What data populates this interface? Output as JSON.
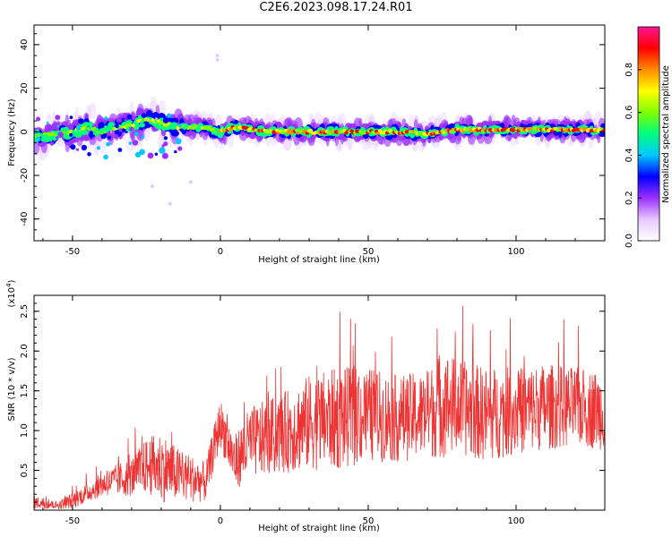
{
  "figure": {
    "title": "C2E6.2023.098.17.24.R01"
  },
  "chart_data": [
    {
      "type": "heatmap",
      "xlabel": "Height of straight line (km)",
      "ylabel": "Frequency (Hz)",
      "xlim": [
        -63,
        130
      ],
      "ylim": [
        -50,
        49
      ],
      "xticks": [
        -50,
        0,
        50,
        100
      ],
      "yticks": [
        -40,
        -20,
        0,
        20,
        40
      ],
      "colorbar": {
        "label": "Normalized spectral amplitude",
        "range": [
          0,
          1
        ],
        "ticks": [
          "0.0",
          "0.2",
          "0.4",
          "0.6",
          "0.8"
        ],
        "colors": [
          "#ffffff",
          "#e6c8ff",
          "#9b30ff",
          "#0000ff",
          "#00c8ff",
          "#00ff7f",
          "#7fff00",
          "#ffff00",
          "#ff8c00",
          "#ff0000",
          "#ff1493"
        ]
      },
      "ridge": {
        "x": [
          -63,
          -55,
          -50,
          -45,
          -40,
          -35,
          -30,
          -25,
          -20,
          -15,
          -10,
          -5,
          0,
          5,
          10,
          20,
          30,
          40,
          50,
          60,
          70,
          80,
          90,
          100,
          110,
          120,
          130
        ],
        "frequency": [
          -2,
          -1,
          0,
          2,
          0,
          2,
          3,
          6,
          4,
          2,
          2,
          2,
          0,
          2,
          1,
          0,
          0,
          0,
          0,
          0,
          -1,
          1,
          1,
          1,
          1,
          1,
          1
        ]
      }
    },
    {
      "type": "line",
      "xlabel": "Height of straight line (km)",
      "ylabel": "SNR (10 * v/v)",
      "yscale_label": "(x10",
      "yscale_exp": "4",
      "yscale_close": ")",
      "xlim": [
        -63,
        130
      ],
      "ylim": [
        0,
        2.7
      ],
      "xticks": [
        -50,
        0,
        50,
        100
      ],
      "yticks": [
        "0.5",
        "1.0",
        "1.5",
        "2.0",
        "2.5"
      ],
      "color": "#ee3333",
      "envelope": {
        "x": [
          -63,
          -55,
          -50,
          -45,
          -40,
          -35,
          -30,
          -25,
          -20,
          -15,
          -10,
          -5,
          0,
          5,
          10,
          20,
          30,
          40,
          50,
          60,
          70,
          75,
          80,
          90,
          100,
          110,
          120,
          130
        ],
        "mean": [
          0.1,
          0.06,
          0.12,
          0.22,
          0.32,
          0.38,
          0.42,
          0.55,
          0.55,
          0.45,
          0.4,
          0.35,
          1.1,
          0.6,
          0.85,
          0.95,
          1.1,
          1.15,
          1.2,
          1.15,
          1.2,
          1.35,
          1.3,
          1.2,
          1.25,
          1.3,
          1.3,
          1.25
        ],
        "amplitude": [
          0.08,
          0.05,
          0.1,
          0.12,
          0.15,
          0.2,
          0.25,
          0.35,
          0.45,
          0.35,
          0.3,
          0.25,
          0.3,
          0.35,
          0.45,
          0.5,
          0.6,
          0.65,
          0.6,
          0.55,
          0.55,
          0.7,
          0.6,
          0.6,
          0.55,
          0.55,
          0.5,
          0.5
        ]
      }
    }
  ]
}
